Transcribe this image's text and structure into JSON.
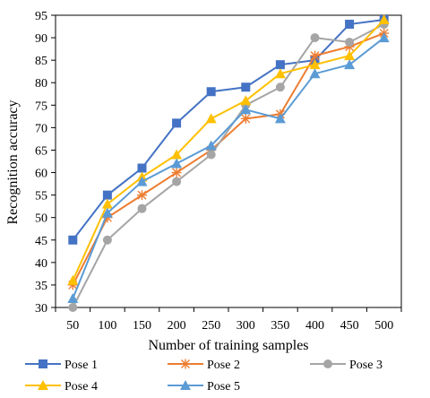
{
  "chart_data": {
    "type": "line",
    "xlabel": "Number of training samples",
    "ylabel": "Recognition accuracy",
    "x": [
      50,
      100,
      150,
      200,
      250,
      300,
      350,
      400,
      450,
      500
    ],
    "ylim": [
      30,
      95
    ],
    "yticks": [
      30,
      35,
      40,
      45,
      50,
      55,
      60,
      65,
      70,
      75,
      80,
      85,
      90,
      95
    ],
    "grid": false,
    "legend_position": "bottom",
    "series": [
      {
        "name": "Pose 1",
        "color": "#4472C4",
        "marker": "square",
        "values": [
          45,
          55,
          61,
          71,
          78,
          79,
          84,
          85,
          93,
          94
        ]
      },
      {
        "name": "Pose 2",
        "color": "#ED7D31",
        "marker": "asterisk",
        "values": [
          35,
          50,
          55,
          60,
          65,
          72,
          73,
          86,
          88,
          91
        ]
      },
      {
        "name": "Pose 3",
        "color": "#A5A5A5",
        "marker": "circle",
        "values": [
          30,
          45,
          52,
          58,
          64,
          75,
          79,
          90,
          89,
          93
        ]
      },
      {
        "name": "Pose 4",
        "color": "#FFC000",
        "marker": "triangle",
        "values": [
          36,
          53,
          59,
          64,
          72,
          76,
          82,
          84,
          86,
          94
        ]
      },
      {
        "name": "Pose 5",
        "color": "#5B9BD5",
        "marker": "triangle",
        "values": [
          32,
          51,
          58,
          62,
          66,
          74,
          72,
          82,
          84,
          90
        ]
      }
    ]
  }
}
